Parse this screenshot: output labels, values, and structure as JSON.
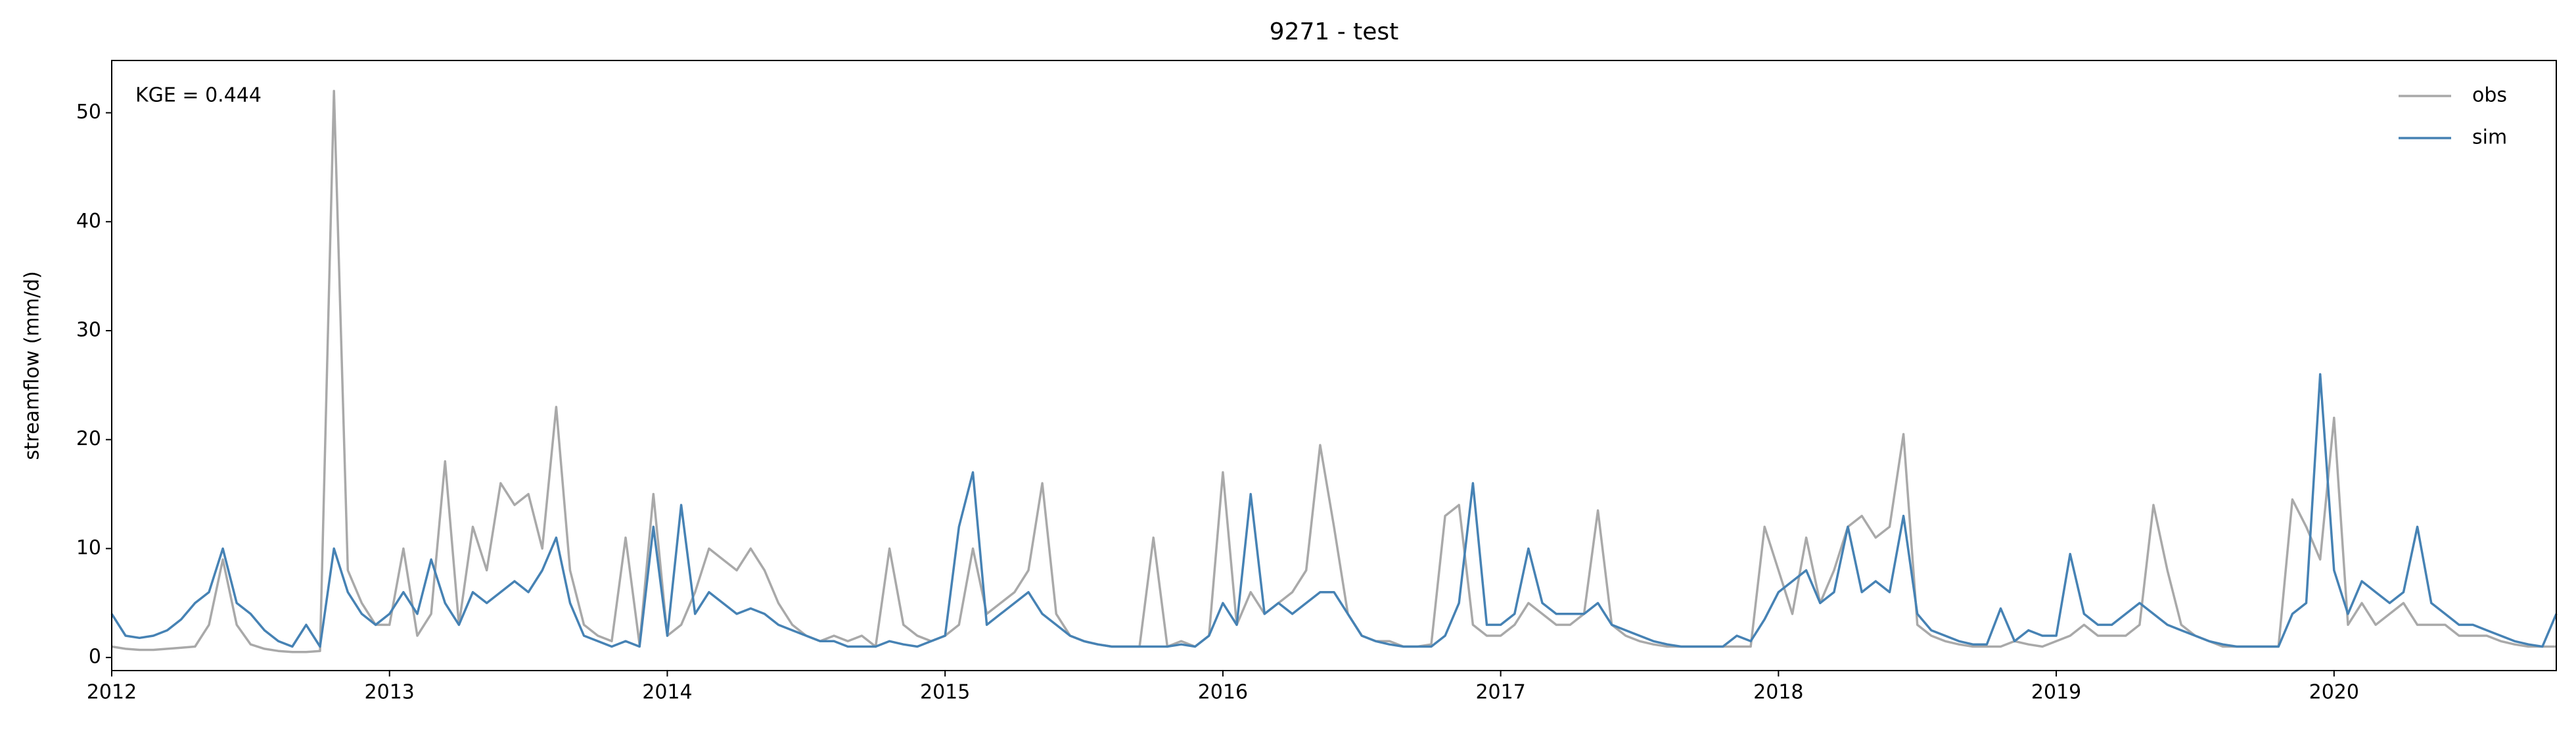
{
  "chart_data": {
    "type": "line",
    "title": "9271 - test",
    "ylabel": "streamflow (mm/d)",
    "annotation": "KGE = 0.444",
    "x": [
      2012,
      2012.05,
      2012.1,
      2012.15,
      2012.2,
      2012.25,
      2012.3,
      2012.35,
      2012.4,
      2012.45,
      2012.5,
      2012.55,
      2012.6,
      2012.65,
      2012.7,
      2012.75,
      2012.8,
      2012.85,
      2012.9,
      2012.95,
      2013,
      2013.05,
      2013.1,
      2013.15,
      2013.2,
      2013.25,
      2013.3,
      2013.35,
      2013.4,
      2013.45,
      2013.5,
      2013.55,
      2013.6,
      2013.65,
      2013.7,
      2013.75,
      2013.8,
      2013.85,
      2013.9,
      2013.95,
      2014,
      2014.05,
      2014.1,
      2014.15,
      2014.2,
      2014.25,
      2014.3,
      2014.35,
      2014.4,
      2014.45,
      2014.5,
      2014.55,
      2014.6,
      2014.65,
      2014.7,
      2014.75,
      2014.8,
      2014.85,
      2014.9,
      2014.95,
      2015,
      2015.05,
      2015.1,
      2015.15,
      2015.2,
      2015.25,
      2015.3,
      2015.35,
      2015.4,
      2015.45,
      2015.5,
      2015.55,
      2015.6,
      2015.65,
      2015.7,
      2015.75,
      2015.8,
      2015.85,
      2015.9,
      2015.95,
      2016,
      2016.05,
      2016.1,
      2016.15,
      2016.2,
      2016.25,
      2016.3,
      2016.35,
      2016.4,
      2016.45,
      2016.5,
      2016.55,
      2016.6,
      2016.65,
      2016.7,
      2016.75,
      2016.8,
      2016.85,
      2016.9,
      2016.95,
      2017,
      2017.05,
      2017.1,
      2017.15,
      2017.2,
      2017.25,
      2017.3,
      2017.35,
      2017.4,
      2017.45,
      2017.5,
      2017.55,
      2017.6,
      2017.65,
      2017.7,
      2017.75,
      2017.8,
      2017.85,
      2017.9,
      2017.95,
      2018,
      2018.05,
      2018.1,
      2018.15,
      2018.2,
      2018.25,
      2018.3,
      2018.35,
      2018.4,
      2018.45,
      2018.5,
      2018.55,
      2018.6,
      2018.65,
      2018.7,
      2018.75,
      2018.8,
      2018.85,
      2018.9,
      2018.95,
      2019,
      2019.05,
      2019.1,
      2019.15,
      2019.2,
      2019.25,
      2019.3,
      2019.35,
      2019.4,
      2019.45,
      2019.5,
      2019.55,
      2019.6,
      2019.65,
      2019.7,
      2019.75,
      2019.8,
      2019.85,
      2019.9,
      2019.95,
      2020,
      2020.05,
      2020.1,
      2020.15,
      2020.2,
      2020.25,
      2020.3,
      2020.35,
      2020.4,
      2020.45,
      2020.5,
      2020.55,
      2020.6,
      2020.65,
      2020.7,
      2020.75,
      2020.8
    ],
    "series": [
      {
        "name": "obs",
        "color": "#a9a9a9",
        "values": [
          1,
          0.8,
          0.7,
          0.7,
          0.8,
          0.9,
          1,
          3,
          9,
          3,
          1.2,
          0.8,
          0.6,
          0.5,
          0.5,
          0.6,
          52,
          8,
          5,
          3,
          3,
          10,
          2,
          4,
          18,
          3,
          12,
          8,
          16,
          14,
          15,
          10,
          23,
          8,
          3,
          2,
          1.5,
          11,
          1.2,
          15,
          2,
          3,
          6,
          10,
          9,
          8,
          10,
          8,
          5,
          3,
          2,
          1.5,
          2,
          1.5,
          2,
          1,
          10,
          3,
          2,
          1.5,
          2,
          3,
          10,
          4,
          5,
          6,
          8,
          16,
          4,
          2,
          1.5,
          1.2,
          1,
          1,
          1,
          11,
          1,
          1.5,
          1,
          2,
          17,
          3,
          6,
          4,
          5,
          6,
          8,
          19.5,
          12,
          4,
          2,
          1.5,
          1.5,
          1,
          1,
          1.2,
          13,
          14,
          3,
          2,
          2,
          3,
          5,
          4,
          3,
          3,
          4,
          13.5,
          3,
          2,
          1.5,
          1.2,
          1,
          1,
          1,
          1,
          1,
          1,
          1,
          12,
          8,
          4,
          11,
          5,
          8,
          12,
          13,
          11,
          12,
          20.5,
          3,
          2,
          1.5,
          1.2,
          1,
          1,
          1,
          1.5,
          1.2,
          1,
          1.5,
          2,
          3,
          2,
          2,
          2,
          3,
          14,
          8,
          3,
          2,
          1.5,
          1,
          1,
          1,
          1,
          1,
          14.5,
          12,
          9,
          22,
          3,
          5,
          3,
          4,
          5,
          3,
          3,
          3,
          2,
          2,
          2,
          1.5,
          1.2,
          1,
          1,
          1
        ]
      },
      {
        "name": "sim",
        "color": "#4682b4",
        "values": [
          4,
          2,
          1.8,
          2,
          2.5,
          3.5,
          5,
          6,
          10,
          5,
          4,
          2.5,
          1.5,
          1,
          3,
          1,
          10,
          6,
          4,
          3,
          4,
          6,
          4,
          9,
          5,
          3,
          6,
          5,
          6,
          7,
          6,
          8,
          11,
          5,
          2,
          1.5,
          1,
          1.5,
          1,
          12,
          2,
          14,
          4,
          6,
          5,
          4,
          4.5,
          4,
          3,
          2.5,
          2,
          1.5,
          1.5,
          1,
          1,
          1,
          1.5,
          1.2,
          1,
          1.5,
          2,
          12,
          17,
          3,
          4,
          5,
          6,
          4,
          3,
          2,
          1.5,
          1.2,
          1,
          1,
          1,
          1,
          1,
          1.2,
          1,
          2,
          5,
          3,
          15,
          4,
          5,
          4,
          5,
          6,
          6,
          4,
          2,
          1.5,
          1.2,
          1,
          1,
          1,
          2,
          5,
          16,
          3,
          3,
          4,
          10,
          5,
          4,
          4,
          4,
          5,
          3,
          2.5,
          2,
          1.5,
          1.2,
          1,
          1,
          1,
          1,
          2,
          1.5,
          3.5,
          6,
          7,
          8,
          5,
          6,
          12,
          6,
          7,
          6,
          13,
          4,
          2.5,
          2,
          1.5,
          1.2,
          1.2,
          4.5,
          1.5,
          2.5,
          2,
          2,
          9.5,
          4,
          3,
          3,
          4,
          5,
          4,
          3,
          2.5,
          2,
          1.5,
          1.2,
          1,
          1,
          1,
          1,
          4,
          5,
          26,
          8,
          4,
          7,
          6,
          5,
          6,
          12,
          5,
          4,
          3,
          3,
          2.5,
          2,
          1.5,
          1.2,
          1,
          4
        ]
      }
    ],
    "xlim": [
      2012,
      2020.8
    ],
    "xticks": [
      2012,
      2013,
      2014,
      2015,
      2016,
      2017,
      2018,
      2019,
      2020
    ],
    "ylim": [
      -1.2,
      54.8
    ],
    "yticks": [
      0,
      10,
      20,
      30,
      40,
      50
    ],
    "legend": "upper right"
  }
}
